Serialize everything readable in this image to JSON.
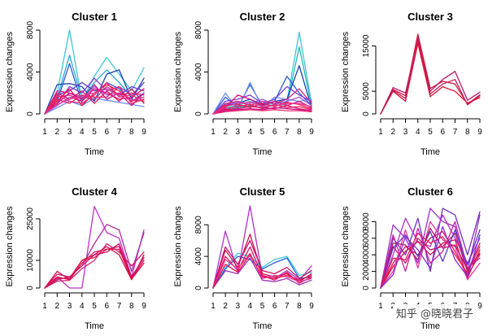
{
  "watermark": "知乎 @晓晓君子",
  "chart_data": [
    {
      "type": "line",
      "title": "Cluster 1",
      "xlabel": "Time",
      "ylabel": "Expression changes",
      "x": [
        1,
        2,
        3,
        4,
        5,
        6,
        7,
        8,
        9
      ],
      "xlim": [
        1,
        9
      ],
      "ylim": [
        0,
        8000
      ],
      "yticks": [
        0,
        4000,
        8000
      ],
      "grid": false,
      "series": [
        {
          "color": "#3ec6d6",
          "values": [
            0,
            2000,
            8000,
            1200,
            3600,
            5400,
            3800,
            2200,
            4400
          ]
        },
        {
          "color": "#2aa8d0",
          "values": [
            0,
            1500,
            5600,
            1400,
            3000,
            4200,
            3000,
            1600,
            3000
          ]
        },
        {
          "color": "#1a3fb0",
          "values": [
            0,
            2800,
            2900,
            2600,
            1200,
            3800,
            4200,
            1400,
            3400
          ]
        },
        {
          "color": "#2b5bd6",
          "values": [
            0,
            1200,
            4800,
            1000,
            1800,
            3000,
            2400,
            1200,
            2000
          ]
        },
        {
          "color": "#5a3cc8",
          "values": [
            0,
            1800,
            2200,
            3000,
            2200,
            2400,
            1800,
            2600,
            2200
          ]
        },
        {
          "color": "#7b3fd0",
          "values": [
            0,
            1000,
            2600,
            2000,
            3400,
            2200,
            2600,
            1800,
            3000
          ]
        },
        {
          "color": "#9b59d6",
          "values": [
            0,
            800,
            1600,
            1200,
            2600,
            1800,
            2000,
            1400,
            1200
          ]
        },
        {
          "color": "#6e8ef0",
          "values": [
            0,
            600,
            1200,
            800,
            1500,
            1300,
            1100,
            900,
            700
          ]
        },
        {
          "color": "#cc2a8a",
          "values": [
            0,
            2200,
            2000,
            1600,
            1400,
            2600,
            1800,
            2000,
            1800
          ]
        },
        {
          "color": "#e0107a",
          "values": [
            0,
            1600,
            1800,
            1200,
            2400,
            2000,
            1400,
            1600,
            2400
          ]
        },
        {
          "color": "#ee1050",
          "values": [
            0,
            1200,
            2400,
            800,
            2000,
            2800,
            2200,
            1200,
            1600
          ]
        },
        {
          "color": "#f0205a",
          "values": [
            0,
            1400,
            1000,
            1800,
            1600,
            1600,
            2600,
            1000,
            1400
          ]
        },
        {
          "color": "#d81868",
          "values": [
            0,
            2000,
            1400,
            2200,
            1000,
            2200,
            1200,
            2400,
            1000
          ]
        },
        {
          "color": "#c8108c",
          "values": [
            0,
            1000,
            2000,
            1400,
            2800,
            1400,
            2000,
            800,
            2000
          ]
        },
        {
          "color": "#f4286e",
          "values": [
            0,
            1800,
            1200,
            1000,
            1800,
            3000,
            1600,
            1800,
            1200
          ]
        },
        {
          "color": "#e23a9a",
          "values": [
            0,
            900,
            1400,
            1700,
            2000,
            2400,
            1700,
            1300,
            1600
          ]
        }
      ]
    },
    {
      "type": "line",
      "title": "Cluster 2",
      "xlabel": "Time",
      "ylabel": "Expression changes",
      "x": [
        1,
        2,
        3,
        4,
        5,
        6,
        7,
        8,
        9
      ],
      "xlim": [
        1,
        9
      ],
      "ylim": [
        0,
        8000
      ],
      "yticks": [
        0,
        4000,
        8000
      ],
      "grid": false,
      "series": [
        {
          "color": "#3ec6d6",
          "values": [
            0,
            600,
            800,
            1200,
            800,
            1000,
            1200,
            7800,
            1000
          ]
        },
        {
          "color": "#2ab8b8",
          "values": [
            0,
            400,
            600,
            800,
            600,
            800,
            900,
            6400,
            800
          ]
        },
        {
          "color": "#1a3fb0",
          "values": [
            0,
            800,
            1000,
            1400,
            900,
            1200,
            1400,
            4600,
            600
          ]
        },
        {
          "color": "#2b5bd6",
          "values": [
            0,
            1600,
            600,
            2800,
            800,
            1200,
            3600,
            2000,
            800
          ]
        },
        {
          "color": "#6e8ef0",
          "values": [
            0,
            2000,
            400,
            3000,
            600,
            1600,
            1400,
            1200,
            1400
          ]
        },
        {
          "color": "#7b3fd0",
          "values": [
            0,
            1200,
            1400,
            1800,
            1000,
            1400,
            2600,
            1800,
            1200
          ]
        },
        {
          "color": "#9b59d6",
          "values": [
            0,
            900,
            1100,
            1000,
            1400,
            900,
            1200,
            1600,
            800
          ]
        },
        {
          "color": "#cc2a8a",
          "values": [
            0,
            1000,
            1200,
            800,
            1200,
            1000,
            1400,
            2400,
            1000
          ]
        },
        {
          "color": "#e0107a",
          "values": [
            0,
            600,
            1800,
            1400,
            800,
            1200,
            800,
            1200,
            600
          ]
        },
        {
          "color": "#ee1050",
          "values": [
            0,
            800,
            900,
            600,
            1000,
            700,
            1100,
            900,
            500
          ]
        },
        {
          "color": "#f0205a",
          "values": [
            0,
            500,
            700,
            900,
            500,
            900,
            600,
            700,
            400
          ]
        },
        {
          "color": "#d81868",
          "values": [
            0,
            400,
            500,
            700,
            600,
            500,
            800,
            500,
            300
          ]
        },
        {
          "color": "#c8108c",
          "values": [
            0,
            300,
            400,
            500,
            400,
            600,
            500,
            400,
            300
          ]
        },
        {
          "color": "#f4286e",
          "values": [
            0,
            200,
            300,
            400,
            300,
            400,
            300,
            300,
            200
          ]
        },
        {
          "color": "#e23a9a",
          "values": [
            0,
            700,
            1000,
            1100,
            700,
            800,
            1000,
            1000,
            700
          ]
        }
      ]
    },
    {
      "type": "line",
      "title": "Cluster 3",
      "xlabel": "Time",
      "ylabel": "Expression changes",
      "x": [
        1,
        2,
        3,
        4,
        5,
        6,
        7,
        8,
        9
      ],
      "xlim": [
        1,
        9
      ],
      "ylim": [
        0,
        18500
      ],
      "yticks": [
        0,
        5000,
        15000
      ],
      "grid": false,
      "series": [
        {
          "color": "#d0103a",
          "values": [
            0,
            5400,
            4000,
            17600,
            5600,
            7200,
            6600,
            2200,
            4200
          ]
        },
        {
          "color": "#b8186e",
          "values": [
            0,
            5800,
            4600,
            16400,
            5000,
            7600,
            9400,
            3000,
            4800
          ]
        },
        {
          "color": "#e01030",
          "values": [
            0,
            5000,
            2800,
            15600,
            3800,
            6000,
            5000,
            2400,
            3600
          ]
        },
        {
          "color": "#c42058",
          "values": [
            0,
            5200,
            3400,
            16800,
            4400,
            6600,
            7600,
            2000,
            4000
          ]
        }
      ]
    },
    {
      "type": "line",
      "title": "Cluster 4",
      "xlabel": "Time",
      "ylabel": "Expression changes",
      "x": [
        1,
        2,
        3,
        4,
        5,
        6,
        7,
        8,
        9
      ],
      "xlim": [
        1,
        9
      ],
      "ylim": [
        0,
        30000
      ],
      "yticks": [
        0,
        10000,
        25000
      ],
      "grid": false,
      "series": [
        {
          "color": "#c030c8",
          "values": [
            0,
            4000,
            0,
            0,
            29500,
            20000,
            18000,
            4000,
            21000
          ]
        },
        {
          "color": "#b02898",
          "values": [
            0,
            3000,
            4000,
            8000,
            16000,
            23000,
            21000,
            6000,
            20000
          ]
        },
        {
          "color": "#d01050",
          "values": [
            0,
            6000,
            3000,
            10000,
            12000,
            15000,
            12000,
            3000,
            12000
          ]
        },
        {
          "color": "#e0105a",
          "values": [
            0,
            4000,
            3000,
            9000,
            13000,
            14000,
            15000,
            3500,
            10000
          ]
        },
        {
          "color": "#c81068",
          "values": [
            0,
            5000,
            4000,
            8000,
            12000,
            13000,
            16000,
            4000,
            11000
          ]
        },
        {
          "color": "#e41040",
          "values": [
            0,
            3500,
            3500,
            10000,
            11000,
            14000,
            14000,
            3200,
            9000
          ]
        },
        {
          "color": "#cc2070",
          "values": [
            0,
            2500,
            2800,
            7000,
            10000,
            16000,
            13000,
            8000,
            13000
          ]
        }
      ]
    },
    {
      "type": "line",
      "title": "Cluster 5",
      "xlabel": "Time",
      "ylabel": "Expression changes",
      "x": [
        1,
        2,
        3,
        4,
        5,
        6,
        7,
        8,
        9
      ],
      "xlim": [
        1,
        9
      ],
      "ylim": [
        0,
        10500
      ],
      "yticks": [
        0,
        4000,
        8000
      ],
      "grid": false,
      "series": [
        {
          "color": "#b030c8",
          "values": [
            0,
            7200,
            2000,
            10400,
            1600,
            1200,
            2200,
            1000,
            2800
          ]
        },
        {
          "color": "#3ec6d6",
          "values": [
            0,
            2600,
            4400,
            4000,
            2600,
            3600,
            4000,
            1600,
            2000
          ]
        },
        {
          "color": "#2b5bd6",
          "values": [
            0,
            2400,
            4000,
            3600,
            2400,
            3200,
            3800,
            1200,
            1400
          ]
        },
        {
          "color": "#d01050",
          "values": [
            0,
            4800,
            2600,
            6800,
            1800,
            1400,
            1800,
            800,
            1800
          ]
        },
        {
          "color": "#c81068",
          "values": [
            0,
            5200,
            3000,
            6000,
            2200,
            1800,
            2600,
            1200,
            2200
          ]
        },
        {
          "color": "#e0105a",
          "values": [
            0,
            4000,
            2200,
            5200,
            1600,
            1000,
            2000,
            600,
            1400
          ]
        },
        {
          "color": "#e23a9a",
          "values": [
            0,
            3600,
            2400,
            4400,
            1200,
            1600,
            1400,
            800,
            1200
          ]
        },
        {
          "color": "#9b30b8",
          "values": [
            0,
            2200,
            1800,
            3800,
            1000,
            800,
            1200,
            400,
            1000
          ]
        },
        {
          "color": "#ee1050",
          "values": [
            0,
            3000,
            2000,
            4200,
            1400,
            1200,
            1600,
            1000,
            1600
          ]
        }
      ]
    },
    {
      "type": "line",
      "title": "Cluster 6",
      "xlabel": "Time",
      "ylabel": "Expression changes",
      "x": [
        1,
        2,
        3,
        4,
        5,
        6,
        7,
        8,
        9
      ],
      "xlim": [
        1,
        9
      ],
      "ylim": [
        0,
        10000
      ],
      "yticks": [
        0,
        2000,
        4000,
        6000,
        8000
      ],
      "grid": false,
      "series": [
        {
          "color": "#7030c0",
          "values": [
            0,
            6000,
            4000,
            8400,
            2000,
            9600,
            8800,
            4000,
            9200
          ]
        },
        {
          "color": "#9b30c8",
          "values": [
            0,
            7600,
            6000,
            3000,
            9600,
            8000,
            7400,
            2000,
            8800
          ]
        },
        {
          "color": "#b030c8",
          "values": [
            0,
            4000,
            8400,
            5600,
            5000,
            8800,
            6000,
            3000,
            6000
          ]
        },
        {
          "color": "#c81068",
          "values": [
            0,
            5000,
            3000,
            6000,
            4600,
            5000,
            6600,
            2000,
            5400
          ]
        },
        {
          "color": "#e0105a",
          "values": [
            0,
            3000,
            5000,
            4000,
            6000,
            6800,
            4400,
            1600,
            4000
          ]
        },
        {
          "color": "#d01050",
          "values": [
            0,
            2600,
            4400,
            5600,
            4000,
            5400,
            5800,
            1200,
            4600
          ]
        },
        {
          "color": "#cc20a0",
          "values": [
            0,
            6400,
            2000,
            7200,
            3000,
            4400,
            8000,
            2400,
            3600
          ]
        },
        {
          "color": "#e23a9a",
          "values": [
            0,
            2000,
            7000,
            2400,
            8000,
            5800,
            5000,
            1000,
            3000
          ]
        },
        {
          "color": "#5a3cc8",
          "values": [
            0,
            4800,
            6400,
            3800,
            6800,
            3200,
            7000,
            2800,
            7000
          ]
        },
        {
          "color": "#f0205a",
          "values": [
            0,
            3600,
            3400,
            6600,
            5400,
            6200,
            4000,
            1800,
            5000
          ]
        },
        {
          "color": "#b8186e",
          "values": [
            0,
            5400,
            5200,
            3400,
            7200,
            4800,
            5200,
            2200,
            4200
          ]
        },
        {
          "color": "#8a2ad0",
          "values": [
            0,
            1600,
            6200,
            4600,
            2400,
            7400,
            3400,
            1400,
            6400
          ]
        }
      ]
    }
  ]
}
